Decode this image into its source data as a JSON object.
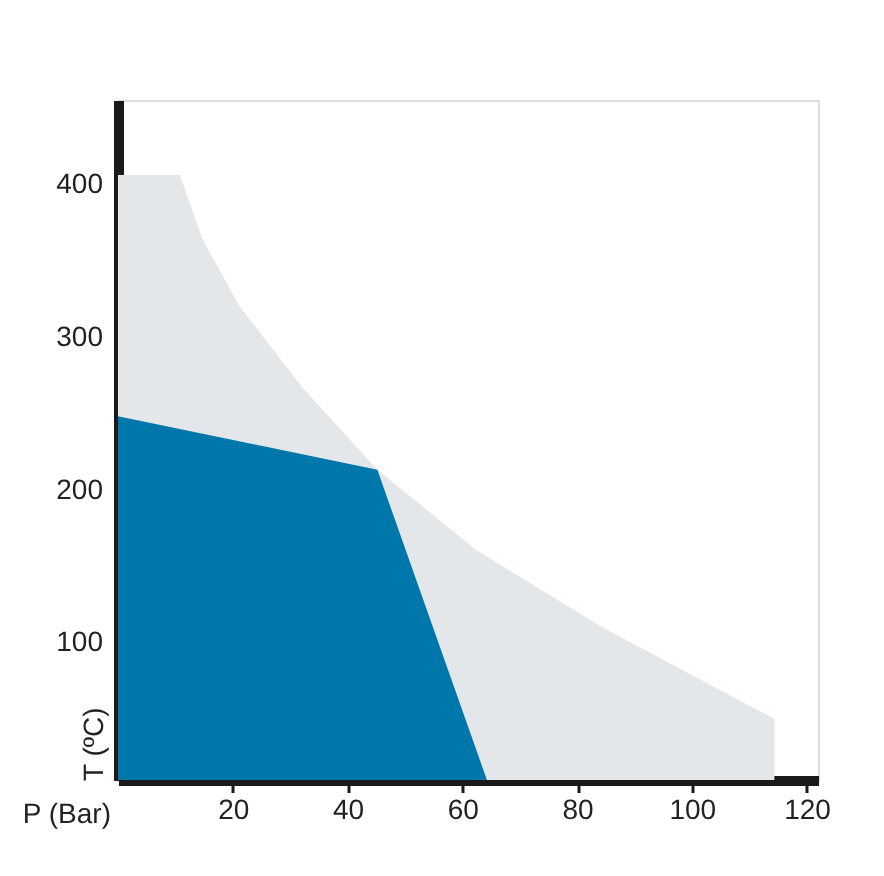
{
  "chart_data": {
    "type": "area",
    "xlabel": "P (Bar)",
    "ylabel": "T (ºC)",
    "xlim": [
      0,
      122
    ],
    "ylim": [
      10,
      455
    ],
    "xticks": [
      20,
      40,
      60,
      80,
      100,
      120
    ],
    "yticks": [
      100,
      200,
      300,
      400
    ],
    "series": [
      {
        "color": "#e4e7ea",
        "x": [
          0,
          10.8,
          14.7,
          21.2,
          32.1,
          45.2,
          62.6,
          84.4,
          100.8,
          114.4,
          114.4
        ],
        "values": [
          406,
          406,
          364,
          320,
          267,
          213,
          160,
          110,
          77,
          50,
          10
        ]
      },
      {
        "color": "#0077aa",
        "x": [
          0,
          45.2,
          64.3
        ],
        "values": [
          248,
          213,
          10
        ]
      }
    ]
  }
}
